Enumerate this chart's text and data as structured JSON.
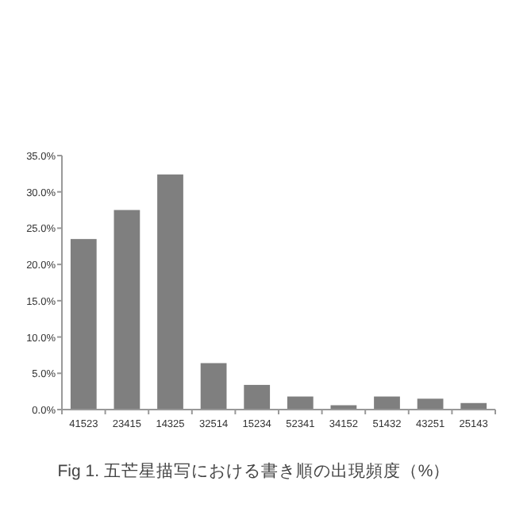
{
  "chart_data": {
    "type": "bar",
    "title": "Fig 1. 五芒星描写における書き順の出現頻度（%）",
    "categories": [
      "41523",
      "23415",
      "14325",
      "32514",
      "15234",
      "52341",
      "34152",
      "51432",
      "43251",
      "25143"
    ],
    "values": [
      23.5,
      27.5,
      32.4,
      6.4,
      3.4,
      1.8,
      0.6,
      1.8,
      1.5,
      0.9
    ],
    "color": "#7f7f7f",
    "ylim": [
      0,
      35
    ],
    "yticks": [
      {
        "value": 0,
        "label": "0.0%"
      },
      {
        "value": 5,
        "label": "5.0%"
      },
      {
        "value": 10,
        "label": "10.0%"
      },
      {
        "value": 15,
        "label": "15.0%"
      },
      {
        "value": 20,
        "label": "20.0%"
      },
      {
        "value": 25,
        "label": "25.0%"
      },
      {
        "value": 30,
        "label": "30.0%"
      },
      {
        "value": 35,
        "label": "35.0%"
      }
    ],
    "grid": false
  }
}
